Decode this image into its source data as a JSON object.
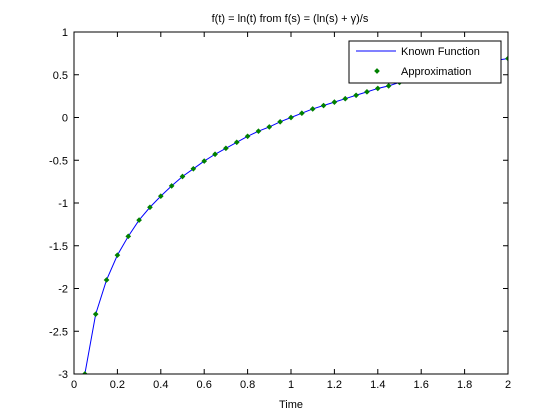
{
  "chart_data": {
    "type": "line",
    "title": "f(t) = ln(t) from f(s) = (ln(s) + γ)/s",
    "xlabel": "Time",
    "ylabel": "",
    "xlim": [
      0,
      2
    ],
    "ylim": [
      -3,
      1
    ],
    "x_ticks": [
      "0",
      "0.2",
      "0.4",
      "0.6",
      "0.8",
      "1",
      "1.2",
      "1.4",
      "1.6",
      "1.8",
      "2"
    ],
    "y_ticks": [
      "1",
      "0.5",
      "0",
      "-0.5",
      "-1",
      "-1.5",
      "-2",
      "-2.5",
      "-3"
    ],
    "grid": false,
    "legend_position": "top-right",
    "series": [
      {
        "name": "Known Function",
        "style": "line",
        "color": "#0000ff",
        "x": [
          0.05,
          0.1,
          0.15,
          0.2,
          0.25,
          0.3,
          0.35,
          0.4,
          0.45,
          0.5,
          0.55,
          0.6,
          0.65,
          0.7,
          0.75,
          0.8,
          0.85,
          0.9,
          0.95,
          1.0,
          1.05,
          1.1,
          1.15,
          1.2,
          1.25,
          1.3,
          1.35,
          1.4,
          1.45,
          1.5,
          1.55,
          1.6,
          1.65,
          1.7,
          1.75,
          1.8,
          1.85,
          1.9,
          1.95,
          2.0
        ],
        "y": [
          -3.0,
          -2.3,
          -1.9,
          -1.61,
          -1.39,
          -1.2,
          -1.05,
          -0.92,
          -0.8,
          -0.69,
          -0.6,
          -0.51,
          -0.43,
          -0.36,
          -0.29,
          -0.22,
          -0.16,
          -0.11,
          -0.05,
          0.0,
          0.05,
          0.1,
          0.14,
          0.18,
          0.22,
          0.26,
          0.3,
          0.34,
          0.37,
          0.41,
          0.44,
          0.47,
          0.5,
          0.53,
          0.56,
          0.59,
          0.62,
          0.64,
          0.67,
          0.69
        ]
      },
      {
        "name": "Approximation",
        "style": "markers",
        "color": "#008000",
        "x": [
          0.05,
          0.1,
          0.15,
          0.2,
          0.25,
          0.3,
          0.35,
          0.4,
          0.45,
          0.5,
          0.55,
          0.6,
          0.65,
          0.7,
          0.75,
          0.8,
          0.85,
          0.9,
          0.95,
          1.0,
          1.05,
          1.1,
          1.15,
          1.2,
          1.25,
          1.3,
          1.35,
          1.4,
          1.45,
          1.5,
          1.55,
          1.6,
          1.65,
          1.7,
          1.75,
          1.8,
          1.85,
          1.9,
          1.95,
          2.0
        ],
        "y": [
          -3.0,
          -2.3,
          -1.9,
          -1.61,
          -1.39,
          -1.2,
          -1.05,
          -0.92,
          -0.8,
          -0.69,
          -0.6,
          -0.51,
          -0.43,
          -0.36,
          -0.29,
          -0.22,
          -0.16,
          -0.11,
          -0.05,
          0.0,
          0.05,
          0.1,
          0.14,
          0.18,
          0.22,
          0.26,
          0.3,
          0.34,
          0.37,
          0.41,
          0.44,
          0.47,
          0.5,
          0.53,
          0.56,
          0.59,
          0.62,
          0.64,
          0.67,
          0.69
        ]
      }
    ]
  }
}
